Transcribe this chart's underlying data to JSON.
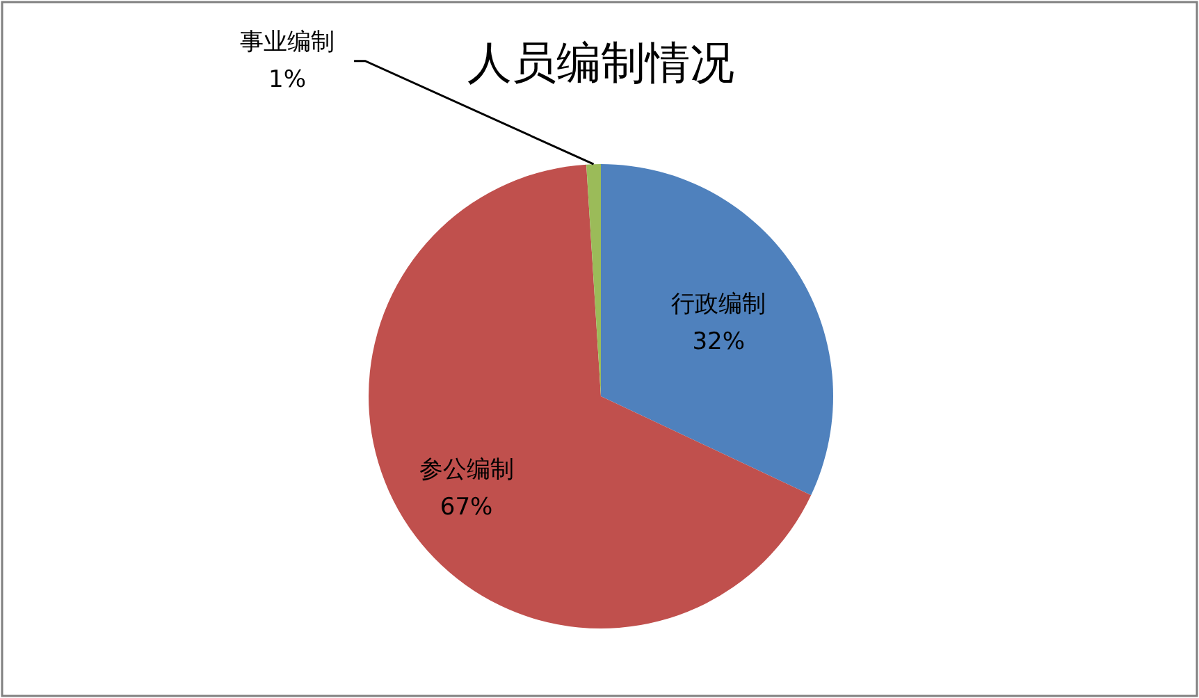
{
  "chart_data": {
    "type": "pie",
    "title": "人员编制情况",
    "categories": [
      "行政编制",
      "参公编制",
      "事业编制"
    ],
    "values": [
      32,
      67,
      1
    ],
    "value_labels": [
      "32%",
      "67%",
      "1%"
    ],
    "colors": [
      "#4f81bd",
      "#c0504d",
      "#9bbb59"
    ]
  }
}
